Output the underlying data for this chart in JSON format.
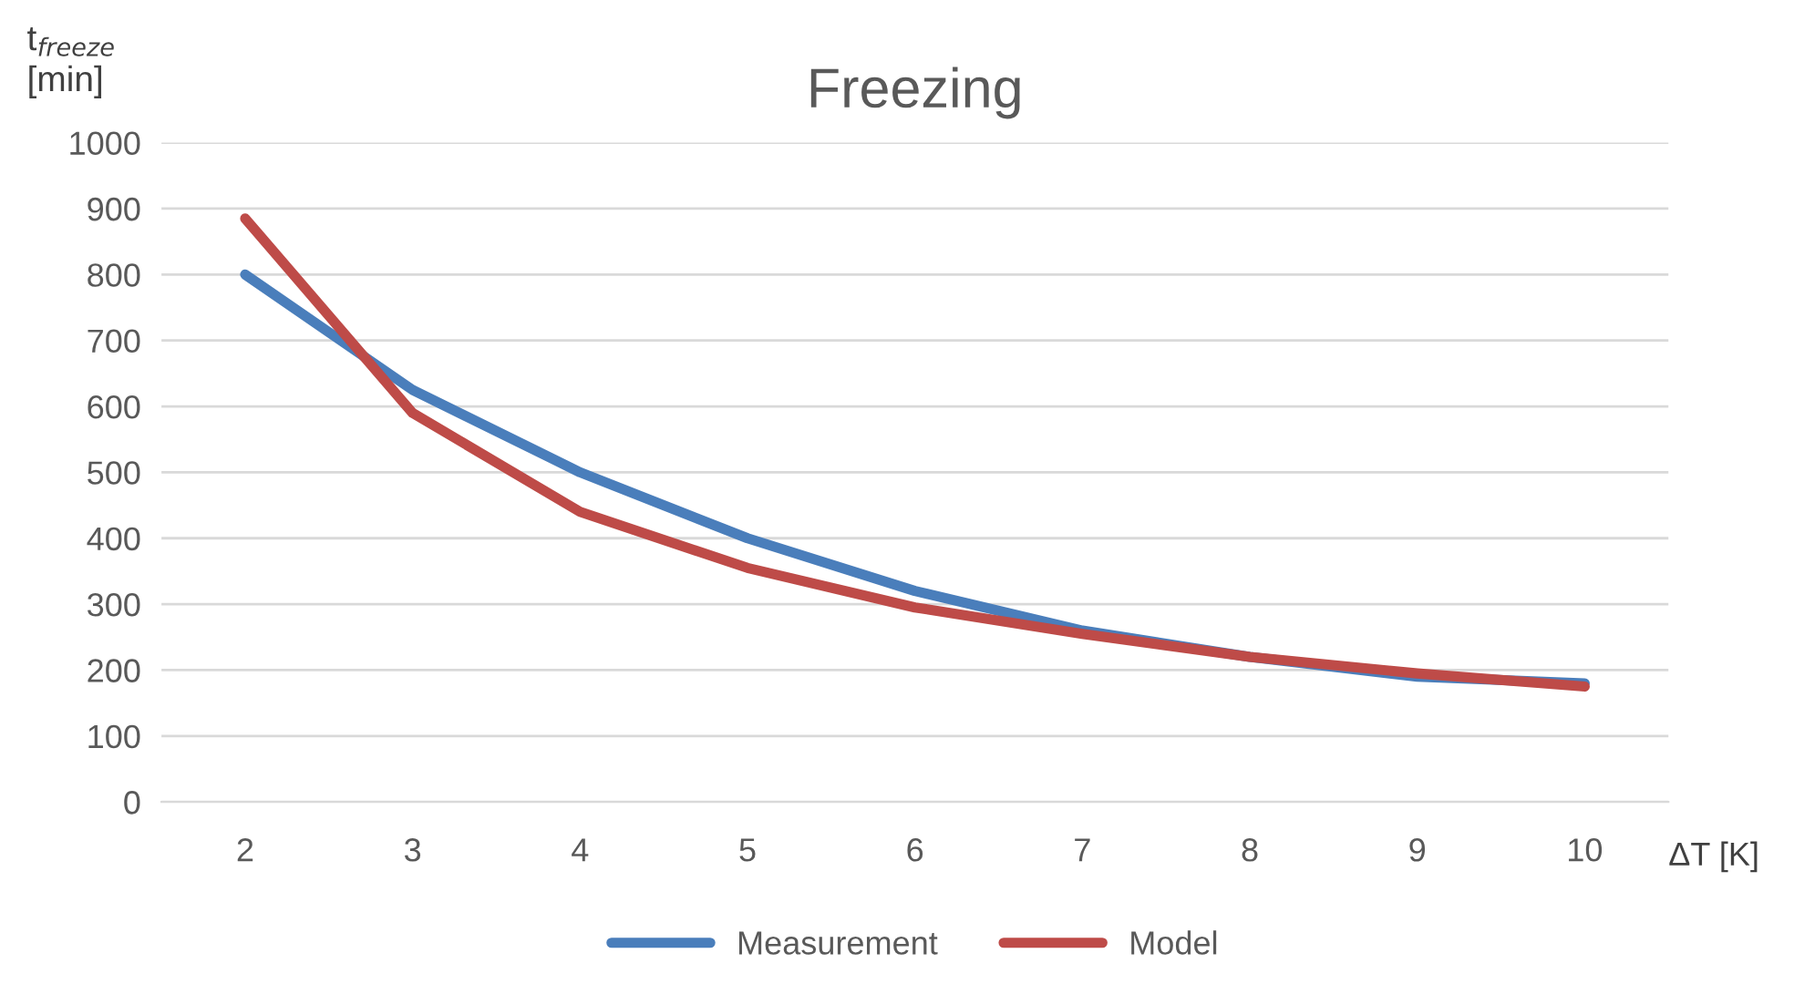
{
  "chart_data": {
    "type": "line",
    "title": "Freezing",
    "xlabel": "ΔT [K]",
    "ylabel": "t$_{freeze}$\n[min]",
    "categories": [
      "2",
      "3",
      "4",
      "5",
      "6",
      "7",
      "8",
      "9",
      "10"
    ],
    "series": [
      {
        "name": "Measurement",
        "color": "#4a7ebb",
        "values": [
          800,
          625,
          500,
          400,
          320,
          260,
          220,
          190,
          180
        ]
      },
      {
        "name": "Model",
        "color": "#be4b48",
        "values": [
          885,
          590,
          440,
          355,
          295,
          255,
          220,
          195,
          175
        ]
      }
    ],
    "ylim": [
      0,
      1000
    ],
    "yticks": [
      0,
      100,
      200,
      300,
      400,
      500,
      600,
      700,
      800,
      900,
      1000
    ],
    "grid": "y",
    "legend": "bottom",
    "marker": "none",
    "line_style": "solid"
  }
}
